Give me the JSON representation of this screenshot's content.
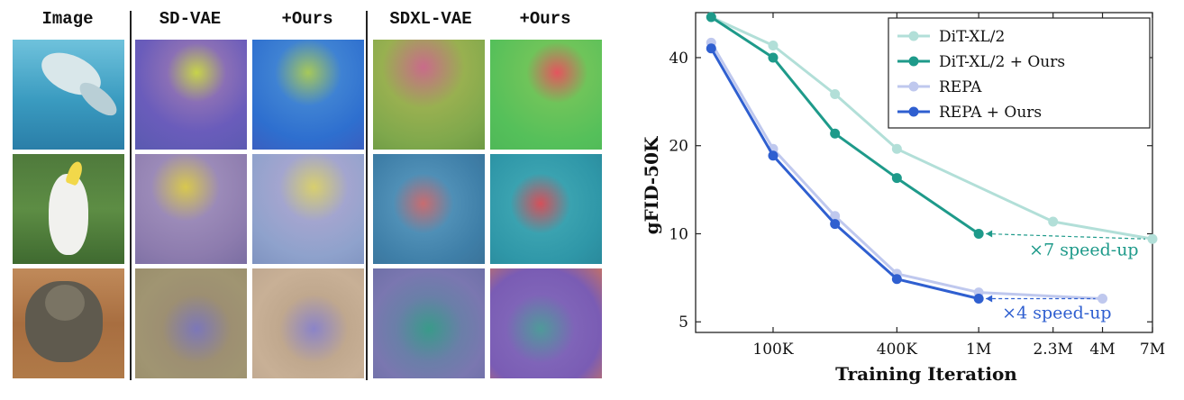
{
  "figure": {
    "columns": [
      "Image",
      "SD-VAE",
      "+Ours",
      "SDXL-VAE",
      "+Ours"
    ]
  },
  "colors": {
    "dit": "#b2dfd8",
    "dit_ours": "#1e9a8a",
    "repa": "#bfc8ee",
    "repa_ours": "#2f5fd0",
    "annot_teal": "#1e9a8a",
    "annot_blue": "#2f5fd0"
  },
  "chart_data": {
    "type": "line",
    "xlabel": "Training Iteration",
    "ylabel": "gFID-50K",
    "xscale": "log",
    "yscale": "log",
    "x_ticks": [
      "100K",
      "400K",
      "1M",
      "2.3M",
      "4M",
      "7M"
    ],
    "y_ticks": [
      5,
      10,
      20,
      40
    ],
    "ylim": [
      4.6,
      57
    ],
    "legend_position": "top-right",
    "series": [
      {
        "name": "DiT-XL/2",
        "x": [
          "50K",
          "100K",
          "200K",
          "400K",
          "2.3M",
          "7M"
        ],
        "xv": [
          50000,
          100000,
          200000,
          400000,
          2300000,
          7000000
        ],
        "values": [
          55,
          44,
          30,
          19.5,
          11,
          9.6
        ]
      },
      {
        "name": "DiT-XL/2 + Ours",
        "x": [
          "50K",
          "100K",
          "200K",
          "400K",
          "1M"
        ],
        "xv": [
          50000,
          100000,
          200000,
          400000,
          1000000
        ],
        "values": [
          55,
          40,
          22,
          15.5,
          10
        ]
      },
      {
        "name": "REPA",
        "x": [
          "50K",
          "100K",
          "200K",
          "400K",
          "1M",
          "4M"
        ],
        "xv": [
          50000,
          100000,
          200000,
          400000,
          1000000,
          4000000
        ],
        "values": [
          45,
          19.5,
          11.5,
          7.3,
          6.3,
          6.0
        ]
      },
      {
        "name": "REPA + Ours",
        "x": [
          "50K",
          "100K",
          "200K",
          "400K",
          "1M"
        ],
        "xv": [
          50000,
          100000,
          200000,
          400000,
          1000000
        ],
        "values": [
          43,
          18.5,
          10.8,
          7.0,
          6.0
        ]
      }
    ],
    "annotations": [
      "×7 speed-up",
      "×4 speed-up"
    ]
  }
}
